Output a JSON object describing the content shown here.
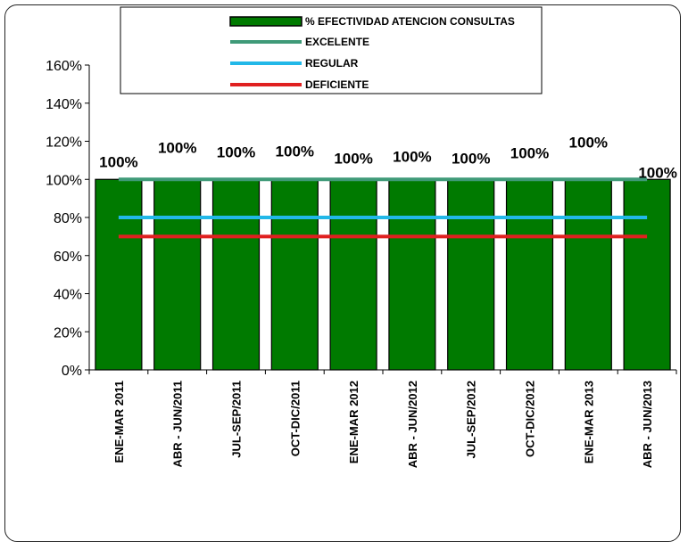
{
  "chart_data": {
    "type": "bar",
    "categories": [
      "ENE-MAR 2011",
      "ABR - JUN/2011",
      "JUL-SEP/2011",
      "OCT-DIC/2011",
      "ENE-MAR 2012",
      "ABR - JUN/2012",
      "JUL-SEP/2012",
      "OCT-DIC/2012",
      "ENE-MAR 2013",
      "ABR - JUN/2013"
    ],
    "series": [
      {
        "name": "% EFECTIVIDAD ATENCION CONSULTAS",
        "kind": "bar",
        "color": "#007a00",
        "values": [
          100,
          100,
          100,
          100,
          100,
          100,
          100,
          100,
          100,
          100
        ]
      },
      {
        "name": "EXCELENTE",
        "kind": "line",
        "color": "#3f9a78",
        "values": [
          100,
          100,
          100,
          100,
          100,
          100,
          100,
          100,
          100,
          100
        ]
      },
      {
        "name": "REGULAR",
        "kind": "line",
        "color": "#22b8e8",
        "values": [
          80,
          80,
          80,
          80,
          80,
          80,
          80,
          80,
          80,
          80
        ]
      },
      {
        "name": "DEFICIENTE",
        "kind": "line",
        "color": "#e02020",
        "values": [
          70,
          70,
          70,
          70,
          70,
          70,
          70,
          70,
          70,
          70
        ]
      }
    ],
    "data_labels": [
      "100%",
      "100%",
      "100%",
      "100%",
      "100%",
      "100%",
      "100%",
      "100%",
      "100%",
      "100%"
    ],
    "y_ticks": [
      "0%",
      "20%",
      "40%",
      "60%",
      "80%",
      "100%",
      "120%",
      "140%",
      "160%"
    ],
    "ylim": [
      0,
      160
    ],
    "grid": false,
    "legend_position": "top-center",
    "title": "",
    "xlabel": "",
    "ylabel": ""
  }
}
